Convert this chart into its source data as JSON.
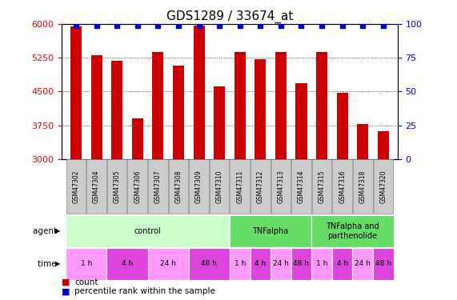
{
  "title": "GDS1289 / 33674_at",
  "samples": [
    "GSM47302",
    "GSM47304",
    "GSM47305",
    "GSM47306",
    "GSM47307",
    "GSM47308",
    "GSM47309",
    "GSM47310",
    "GSM47311",
    "GSM47312",
    "GSM47313",
    "GSM47314",
    "GSM47315",
    "GSM47316",
    "GSM47318",
    "GSM47320"
  ],
  "counts": [
    5950,
    5300,
    5180,
    3900,
    5380,
    5080,
    5960,
    4620,
    5380,
    5220,
    5380,
    4680,
    5380,
    4480,
    3780,
    3620
  ],
  "bar_color": "#cc0000",
  "dot_color": "#0000cc",
  "ylim_left": [
    3000,
    6000
  ],
  "ylim_right": [
    0,
    100
  ],
  "yticks_left": [
    3000,
    3750,
    4500,
    5250,
    6000
  ],
  "yticks_right": [
    0,
    25,
    50,
    75,
    100
  ],
  "agent_groups": [
    {
      "label": "control",
      "start": 0,
      "end": 8,
      "color": "#ccffcc"
    },
    {
      "label": "TNFalpha",
      "start": 8,
      "end": 12,
      "color": "#66dd66"
    },
    {
      "label": "TNFalpha and\nparthenolide",
      "start": 12,
      "end": 16,
      "color": "#66dd66"
    }
  ],
  "time_groups": [
    {
      "label": "1 h",
      "start": 0,
      "end": 2,
      "color": "#ff99ff"
    },
    {
      "label": "4 h",
      "start": 2,
      "end": 4,
      "color": "#dd44dd"
    },
    {
      "label": "24 h",
      "start": 4,
      "end": 6,
      "color": "#ff99ff"
    },
    {
      "label": "48 h",
      "start": 6,
      "end": 8,
      "color": "#dd44dd"
    },
    {
      "label": "1 h",
      "start": 8,
      "end": 9,
      "color": "#ff99ff"
    },
    {
      "label": "4 h",
      "start": 9,
      "end": 10,
      "color": "#dd44dd"
    },
    {
      "label": "24 h",
      "start": 10,
      "end": 11,
      "color": "#ff99ff"
    },
    {
      "label": "48 h",
      "start": 11,
      "end": 12,
      "color": "#dd44dd"
    },
    {
      "label": "1 h",
      "start": 12,
      "end": 13,
      "color": "#ff99ff"
    },
    {
      "label": "4 h",
      "start": 13,
      "end": 14,
      "color": "#dd44dd"
    },
    {
      "label": "24 h",
      "start": 14,
      "end": 15,
      "color": "#ff99ff"
    },
    {
      "label": "48 h",
      "start": 15,
      "end": 16,
      "color": "#dd44dd"
    }
  ],
  "legend_items": [
    {
      "label": "count",
      "color": "#cc0000"
    },
    {
      "label": "percentile rank within the sample",
      "color": "#0000cc"
    }
  ],
  "background_color": "#ffffff",
  "title_fontsize": 11,
  "tick_fontsize": 8,
  "bar_width": 0.55,
  "sample_box_color": "#cccccc",
  "sample_box_edge": "#888888"
}
